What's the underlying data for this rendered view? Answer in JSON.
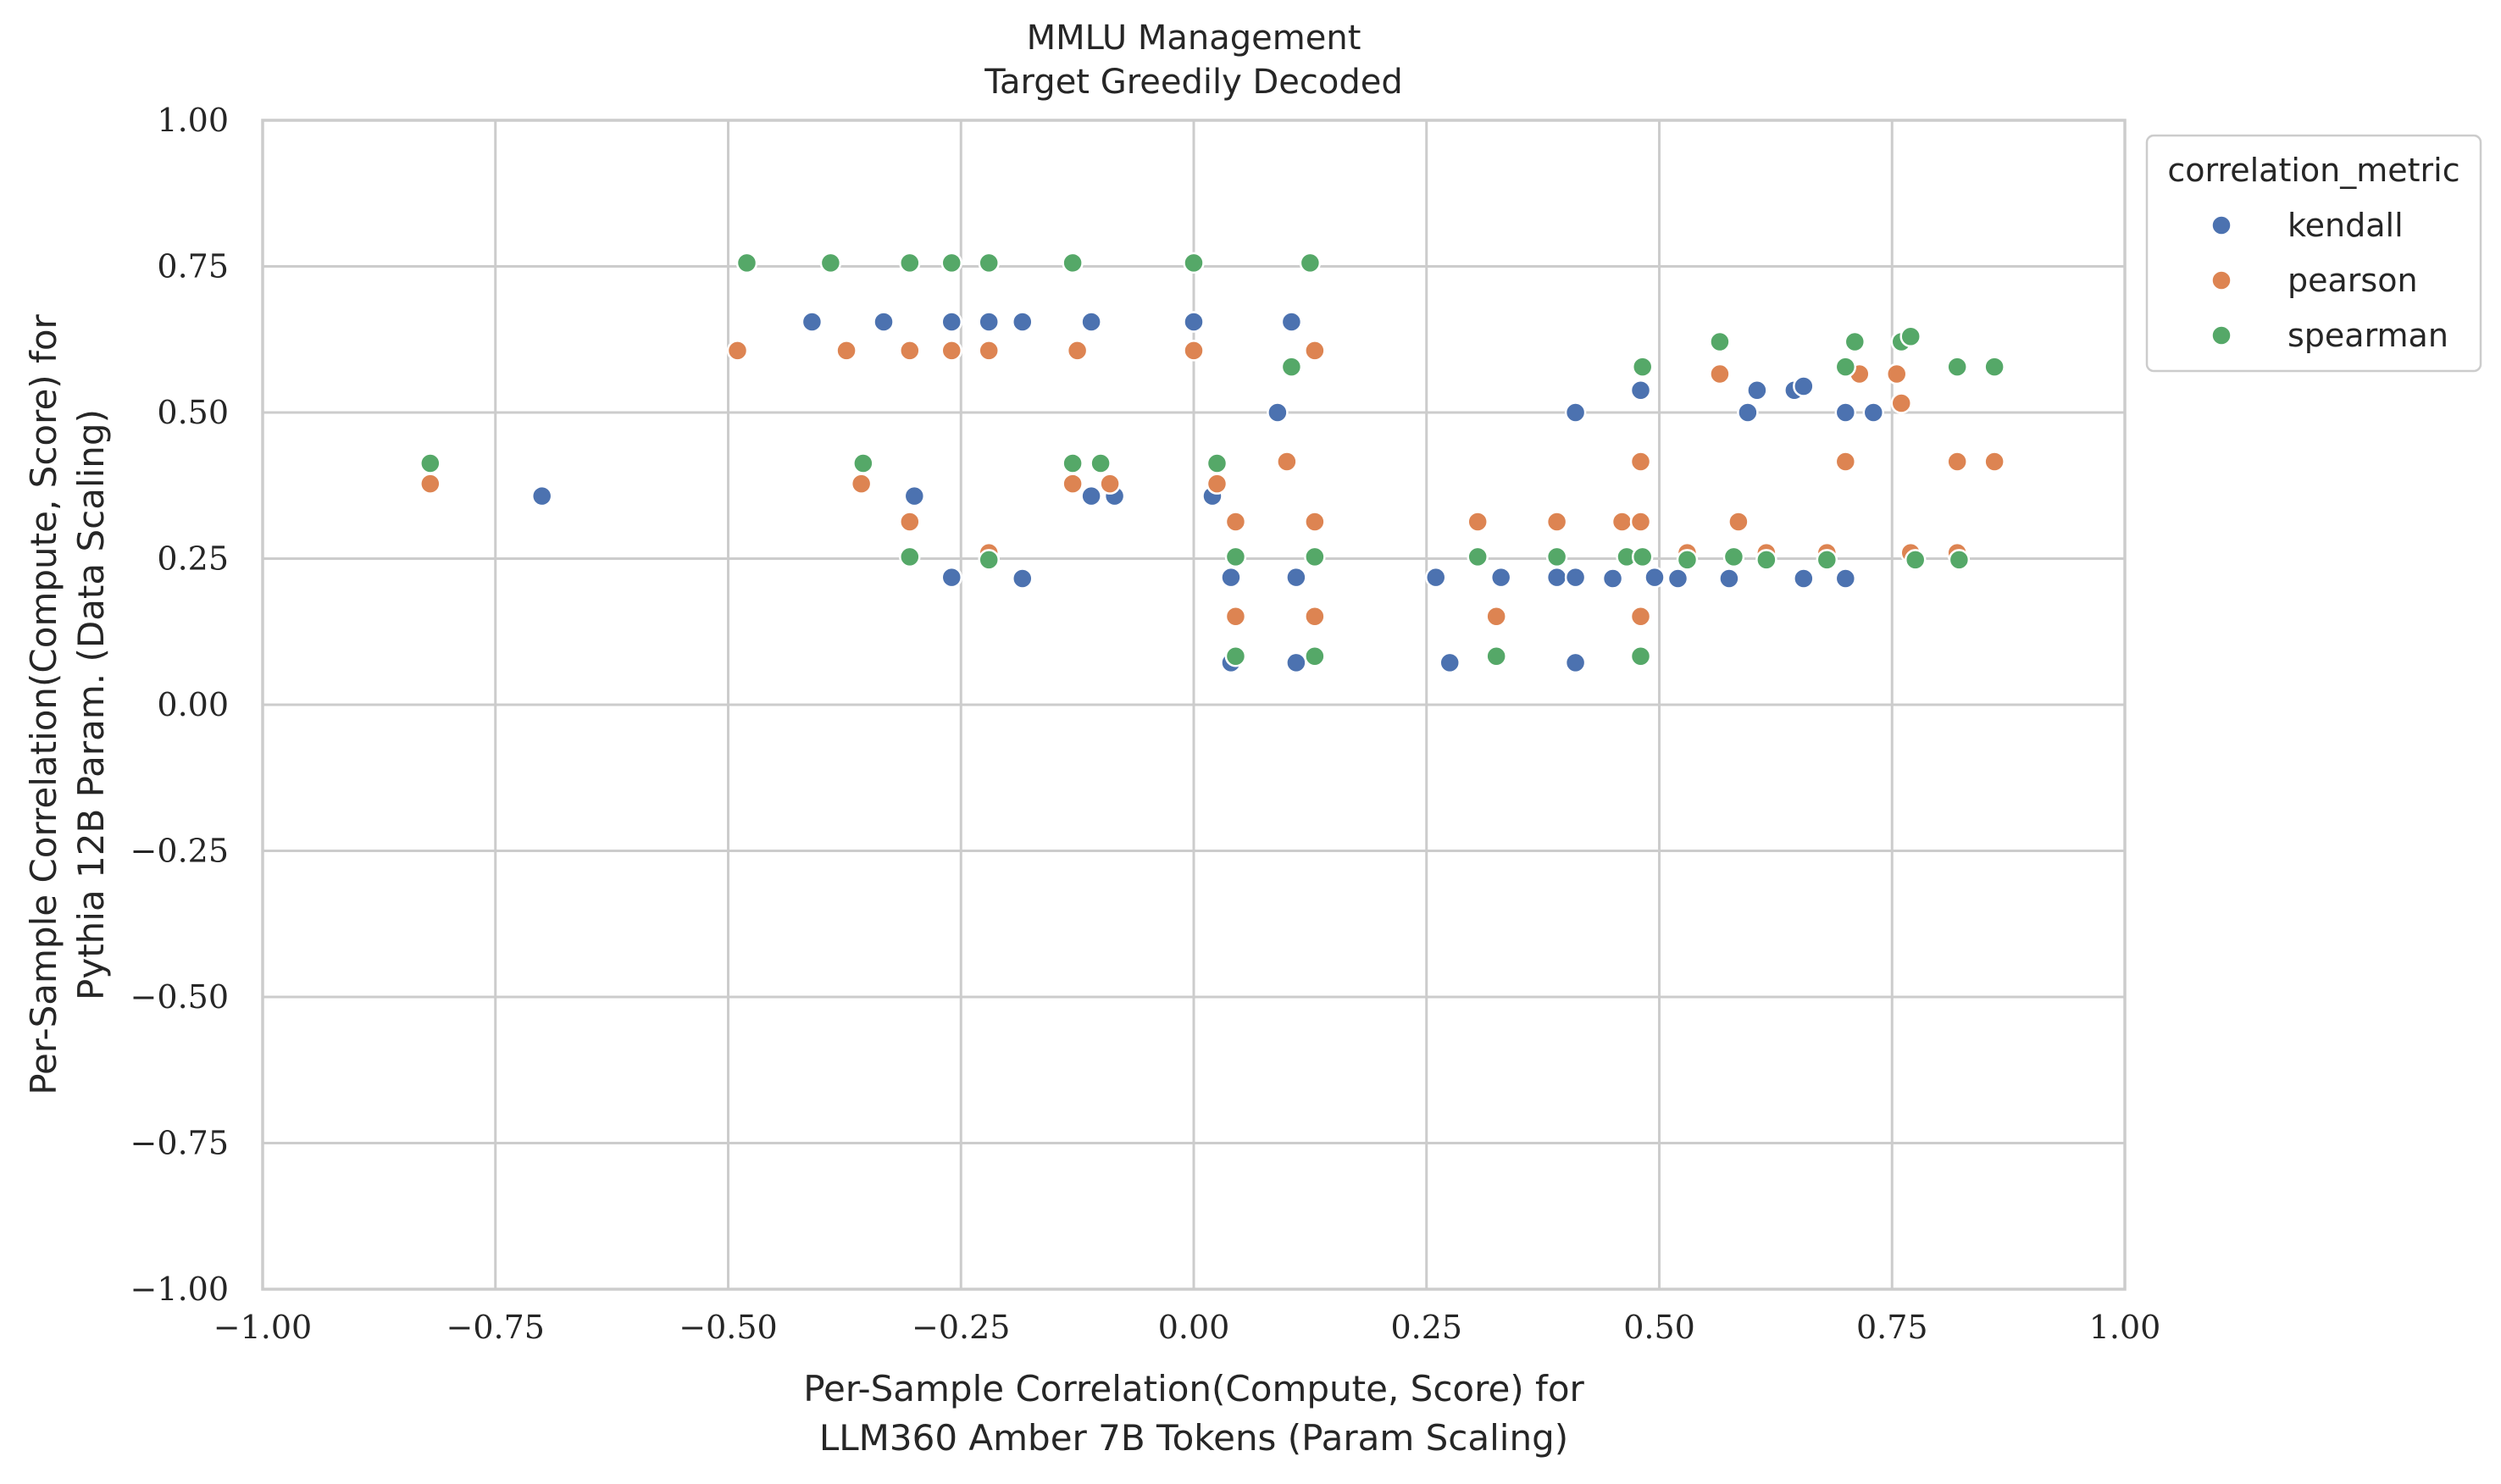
{
  "chart_data": {
    "type": "scatter",
    "title": "MMLU Management",
    "subtitle": "Target Greedily Decoded",
    "xlabel": [
      "Per-Sample Correlation(Compute, Score) for",
      "LLM360 Amber 7B Tokens (Param Scaling)"
    ],
    "ylabel": [
      "Per-Sample Correlation(Compute, Score) for",
      "Pythia 12B Param. (Data Scaling)"
    ],
    "xlim": [
      -1.0,
      1.0
    ],
    "ylim": [
      -1.0,
      1.0
    ],
    "x_ticks": [
      -1.0,
      -0.75,
      -0.5,
      -0.25,
      0.0,
      0.25,
      0.5,
      0.75,
      1.0
    ],
    "y_ticks": [
      -1.0,
      -0.75,
      -0.5,
      -0.25,
      0.0,
      0.25,
      0.5,
      0.75,
      1.0
    ],
    "x_tick_labels": [
      "−1.00",
      "−0.75",
      "−0.50",
      "−0.25",
      "0.00",
      "0.25",
      "0.50",
      "0.75",
      "1.00"
    ],
    "y_tick_labels": [
      "−1.00",
      "−0.75",
      "−0.50",
      "−0.25",
      "0.00",
      "0.25",
      "0.50",
      "0.75",
      "1.00"
    ],
    "grid": true,
    "legend": {
      "title": "correlation_metric",
      "placement": "outside-top-right"
    },
    "series": [
      {
        "name": "kendall",
        "color": "#4c72b0",
        "points": [
          [
            -0.7,
            0.357
          ],
          [
            -0.41,
            0.655
          ],
          [
            -0.333,
            0.655
          ],
          [
            -0.3,
            0.357
          ],
          [
            -0.26,
            0.655
          ],
          [
            -0.26,
            0.218
          ],
          [
            -0.22,
            0.655
          ],
          [
            -0.22,
            0.25
          ],
          [
            -0.184,
            0.655
          ],
          [
            -0.184,
            0.216
          ],
          [
            -0.11,
            0.655
          ],
          [
            -0.11,
            0.357
          ],
          [
            -0.085,
            0.357
          ],
          [
            0.0,
            0.655
          ],
          [
            0.02,
            0.357
          ],
          [
            0.04,
            0.218
          ],
          [
            0.04,
            0.072
          ],
          [
            0.09,
            0.5
          ],
          [
            0.105,
            0.655
          ],
          [
            0.11,
            0.218
          ],
          [
            0.11,
            0.072
          ],
          [
            0.26,
            0.218
          ],
          [
            0.275,
            0.072
          ],
          [
            0.33,
            0.218
          ],
          [
            0.39,
            0.218
          ],
          [
            0.41,
            0.218
          ],
          [
            0.41,
            0.5
          ],
          [
            0.41,
            0.072
          ],
          [
            0.45,
            0.216
          ],
          [
            0.48,
            0.538
          ],
          [
            0.495,
            0.218
          ],
          [
            0.52,
            0.216
          ],
          [
            0.575,
            0.216
          ],
          [
            0.595,
            0.5
          ],
          [
            0.605,
            0.538
          ],
          [
            0.645,
            0.538
          ],
          [
            0.655,
            0.545
          ],
          [
            0.655,
            0.216
          ],
          [
            0.7,
            0.5
          ],
          [
            0.7,
            0.216
          ],
          [
            0.73,
            0.5
          ]
        ]
      },
      {
        "name": "pearson",
        "color": "#dd8452",
        "points": [
          [
            -0.82,
            0.378
          ],
          [
            -0.49,
            0.606
          ],
          [
            -0.373,
            0.606
          ],
          [
            -0.357,
            0.378
          ],
          [
            -0.305,
            0.606
          ],
          [
            -0.305,
            0.313
          ],
          [
            -0.26,
            0.606
          ],
          [
            -0.22,
            0.606
          ],
          [
            -0.22,
            0.26
          ],
          [
            -0.13,
            0.378
          ],
          [
            -0.125,
            0.606
          ],
          [
            -0.09,
            0.378
          ],
          [
            0.0,
            0.606
          ],
          [
            0.025,
            0.378
          ],
          [
            0.045,
            0.313
          ],
          [
            0.045,
            0.151
          ],
          [
            0.1,
            0.416
          ],
          [
            0.13,
            0.606
          ],
          [
            0.13,
            0.313
          ],
          [
            0.13,
            0.151
          ],
          [
            0.305,
            0.313
          ],
          [
            0.325,
            0.151
          ],
          [
            0.39,
            0.313
          ],
          [
            0.46,
            0.313
          ],
          [
            0.48,
            0.416
          ],
          [
            0.48,
            0.313
          ],
          [
            0.48,
            0.151
          ],
          [
            0.53,
            0.26
          ],
          [
            0.565,
            0.566
          ],
          [
            0.585,
            0.313
          ],
          [
            0.615,
            0.26
          ],
          [
            0.68,
            0.26
          ],
          [
            0.7,
            0.416
          ],
          [
            0.715,
            0.566
          ],
          [
            0.755,
            0.566
          ],
          [
            0.76,
            0.516
          ],
          [
            0.77,
            0.26
          ],
          [
            0.82,
            0.416
          ],
          [
            0.82,
            0.26
          ],
          [
            0.86,
            0.416
          ]
        ]
      },
      {
        "name": "spearman",
        "color": "#55a868",
        "points": [
          [
            -0.82,
            0.413
          ],
          [
            -0.48,
            0.756
          ],
          [
            -0.39,
            0.756
          ],
          [
            -0.355,
            0.413
          ],
          [
            -0.305,
            0.756
          ],
          [
            -0.305,
            0.253
          ],
          [
            -0.26,
            0.756
          ],
          [
            -0.22,
            0.756
          ],
          [
            -0.22,
            0.248
          ],
          [
            -0.13,
            0.756
          ],
          [
            -0.13,
            0.413
          ],
          [
            -0.1,
            0.413
          ],
          [
            0.0,
            0.756
          ],
          [
            0.025,
            0.413
          ],
          [
            0.045,
            0.253
          ],
          [
            0.045,
            0.083
          ],
          [
            0.105,
            0.578
          ],
          [
            0.125,
            0.756
          ],
          [
            0.13,
            0.253
          ],
          [
            0.13,
            0.083
          ],
          [
            0.305,
            0.253
          ],
          [
            0.325,
            0.083
          ],
          [
            0.39,
            0.253
          ],
          [
            0.465,
            0.253
          ],
          [
            0.48,
            0.083
          ],
          [
            0.482,
            0.578
          ],
          [
            0.482,
            0.253
          ],
          [
            0.53,
            0.248
          ],
          [
            0.565,
            0.621
          ],
          [
            0.58,
            0.253
          ],
          [
            0.615,
            0.248
          ],
          [
            0.68,
            0.248
          ],
          [
            0.7,
            0.578
          ],
          [
            0.71,
            0.621
          ],
          [
            0.76,
            0.621
          ],
          [
            0.77,
            0.63
          ],
          [
            0.775,
            0.248
          ],
          [
            0.82,
            0.578
          ],
          [
            0.822,
            0.248
          ],
          [
            0.86,
            0.578
          ]
        ]
      }
    ]
  }
}
